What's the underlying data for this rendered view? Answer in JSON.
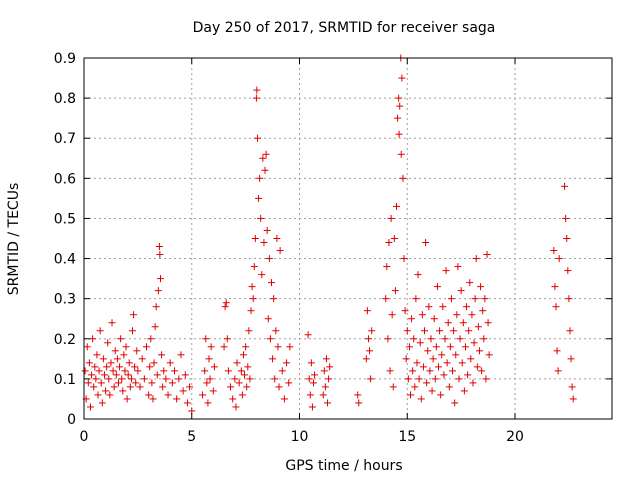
{
  "chart_data": {
    "type": "scatter",
    "title": "Day 250 of 2017, SRMTID for receiver saga",
    "xlabel": "GPS time / hours",
    "ylabel": "SRMTID / TECUs",
    "xlim": [
      0,
      24.5
    ],
    "ylim": [
      0,
      0.9
    ],
    "xticks": [
      0,
      5,
      10,
      15,
      20
    ],
    "yticks": [
      0,
      0.1,
      0.2,
      0.3,
      0.4,
      0.5,
      0.6,
      0.7,
      0.8,
      0.9
    ],
    "xtick_labels": [
      "0",
      "5",
      "10",
      "15",
      "20"
    ],
    "ytick_labels": [
      "0",
      "0.1",
      "0.2",
      "0.3",
      "0.4",
      "0.5",
      "0.6",
      "0.7",
      "0.8",
      "0.9"
    ],
    "grid": true,
    "marker": "+",
    "color": "#e00000",
    "series": [
      {
        "name": "SRMTID",
        "points": [
          [
            0.05,
            0.12
          ],
          [
            0.1,
            0.05
          ],
          [
            0.15,
            0.18
          ],
          [
            0.2,
            0.09
          ],
          [
            0.25,
            0.14
          ],
          [
            0.3,
            0.03
          ],
          [
            0.35,
            0.11
          ],
          [
            0.4,
            0.2
          ],
          [
            0.45,
            0.08
          ],
          [
            0.5,
            0.13
          ],
          [
            0.55,
            0.1
          ],
          [
            0.6,
            0.16
          ],
          [
            0.65,
            0.06
          ],
          [
            0.7,
            0.12
          ],
          [
            0.75,
            0.22
          ],
          [
            0.8,
            0.09
          ],
          [
            0.85,
            0.04
          ],
          [
            0.9,
            0.15
          ],
          [
            0.95,
            0.11
          ],
          [
            1.0,
            0.07
          ],
          [
            1.05,
            0.13
          ],
          [
            1.1,
            0.19
          ],
          [
            1.15,
            0.1
          ],
          [
            1.2,
            0.06
          ],
          [
            1.25,
            0.14
          ],
          [
            1.3,
            0.24
          ],
          [
            1.35,
            0.12
          ],
          [
            1.4,
            0.08
          ],
          [
            1.45,
            0.17
          ],
          [
            1.5,
            0.11
          ],
          [
            1.55,
            0.15
          ],
          [
            1.6,
            0.09
          ],
          [
            1.65,
            0.13
          ],
          [
            1.7,
            0.2
          ],
          [
            1.75,
            0.1
          ],
          [
            1.8,
            0.07
          ],
          [
            1.85,
            0.16
          ],
          [
            1.9,
            0.12
          ],
          [
            1.95,
            0.18
          ],
          [
            2.0,
            0.05
          ],
          [
            2.05,
            0.11
          ],
          [
            2.1,
            0.14
          ],
          [
            2.15,
            0.08
          ],
          [
            2.2,
            0.1
          ],
          [
            2.25,
            0.22
          ],
          [
            2.3,
            0.26
          ],
          [
            2.35,
            0.13
          ],
          [
            2.4,
            0.09
          ],
          [
            2.45,
            0.17
          ],
          [
            2.5,
            0.12
          ],
          [
            2.6,
            0.08
          ],
          [
            2.7,
            0.15
          ],
          [
            2.8,
            0.1
          ],
          [
            2.9,
            0.18
          ],
          [
            3.0,
            0.06
          ],
          [
            3.05,
            0.13
          ],
          [
            3.1,
            0.2
          ],
          [
            3.15,
            0.09
          ],
          [
            3.2,
            0.05
          ],
          [
            3.25,
            0.14
          ],
          [
            3.3,
            0.23
          ],
          [
            3.35,
            0.28
          ],
          [
            3.4,
            0.11
          ],
          [
            3.45,
            0.32
          ],
          [
            3.5,
            0.43
          ],
          [
            3.52,
            0.41
          ],
          [
            3.55,
            0.35
          ],
          [
            3.6,
            0.16
          ],
          [
            3.65,
            0.08
          ],
          [
            3.7,
            0.12
          ],
          [
            3.8,
            0.1
          ],
          [
            3.9,
            0.06
          ],
          [
            4.0,
            0.14
          ],
          [
            4.1,
            0.09
          ],
          [
            4.2,
            0.12
          ],
          [
            4.3,
            0.05
          ],
          [
            4.4,
            0.1
          ],
          [
            4.5,
            0.16
          ],
          [
            4.6,
            0.07
          ],
          [
            4.7,
            0.11
          ],
          [
            4.8,
            0.04
          ],
          [
            4.9,
            0.08
          ],
          [
            5.0,
            0.02
          ],
          [
            5.5,
            0.06
          ],
          [
            5.6,
            0.12
          ],
          [
            5.65,
            0.2
          ],
          [
            5.7,
            0.09
          ],
          [
            5.75,
            0.04
          ],
          [
            5.8,
            0.15
          ],
          [
            5.85,
            0.1
          ],
          [
            5.9,
            0.18
          ],
          [
            6.0,
            0.07
          ],
          [
            6.05,
            0.13
          ],
          [
            6.5,
            0.18
          ],
          [
            6.55,
            0.28
          ],
          [
            6.6,
            0.29
          ],
          [
            6.65,
            0.2
          ],
          [
            6.7,
            0.12
          ],
          [
            6.8,
            0.08
          ],
          [
            6.9,
            0.05
          ],
          [
            7.0,
            0.1
          ],
          [
            7.05,
            0.03
          ],
          [
            7.1,
            0.14
          ],
          [
            7.2,
            0.09
          ],
          [
            7.3,
            0.12
          ],
          [
            7.35,
            0.06
          ],
          [
            7.4,
            0.16
          ],
          [
            7.45,
            0.11
          ],
          [
            7.5,
            0.18
          ],
          [
            7.55,
            0.08
          ],
          [
            7.6,
            0.13
          ],
          [
            7.65,
            0.22
          ],
          [
            7.7,
            0.1
          ],
          [
            7.75,
            0.27
          ],
          [
            7.8,
            0.33
          ],
          [
            7.85,
            0.3
          ],
          [
            7.9,
            0.38
          ],
          [
            7.95,
            0.45
          ],
          [
            8.0,
            0.8
          ],
          [
            8.02,
            0.82
          ],
          [
            8.05,
            0.7
          ],
          [
            8.1,
            0.55
          ],
          [
            8.15,
            0.6
          ],
          [
            8.2,
            0.5
          ],
          [
            8.25,
            0.36
          ],
          [
            8.3,
            0.65
          ],
          [
            8.35,
            0.44
          ],
          [
            8.4,
            0.62
          ],
          [
            8.45,
            0.66
          ],
          [
            8.5,
            0.47
          ],
          [
            8.55,
            0.25
          ],
          [
            8.6,
            0.4
          ],
          [
            8.65,
            0.2
          ],
          [
            8.7,
            0.34
          ],
          [
            8.75,
            0.15
          ],
          [
            8.8,
            0.3
          ],
          [
            8.85,
            0.1
          ],
          [
            8.9,
            0.22
          ],
          [
            8.95,
            0.45
          ],
          [
            9.0,
            0.18
          ],
          [
            9.05,
            0.08
          ],
          [
            9.1,
            0.42
          ],
          [
            9.2,
            0.12
          ],
          [
            9.3,
            0.05
          ],
          [
            9.4,
            0.14
          ],
          [
            9.5,
            0.09
          ],
          [
            9.55,
            0.18
          ],
          [
            10.4,
            0.21
          ],
          [
            10.45,
            0.1
          ],
          [
            10.5,
            0.06
          ],
          [
            10.55,
            0.14
          ],
          [
            10.6,
            0.03
          ],
          [
            10.65,
            0.09
          ],
          [
            10.7,
            0.11
          ],
          [
            11.1,
            0.06
          ],
          [
            11.15,
            0.12
          ],
          [
            11.2,
            0.08
          ],
          [
            11.25,
            0.15
          ],
          [
            11.3,
            0.04
          ],
          [
            11.35,
            0.1
          ],
          [
            11.4,
            0.13
          ],
          [
            12.7,
            0.06
          ],
          [
            12.75,
            0.04
          ],
          [
            13.1,
            0.15
          ],
          [
            13.15,
            0.27
          ],
          [
            13.2,
            0.2
          ],
          [
            13.25,
            0.17
          ],
          [
            13.3,
            0.1
          ],
          [
            13.35,
            0.22
          ],
          [
            14.0,
            0.3
          ],
          [
            14.05,
            0.38
          ],
          [
            14.1,
            0.2
          ],
          [
            14.15,
            0.44
          ],
          [
            14.2,
            0.12
          ],
          [
            14.25,
            0.5
          ],
          [
            14.3,
            0.26
          ],
          [
            14.35,
            0.08
          ],
          [
            14.4,
            0.45
          ],
          [
            14.45,
            0.32
          ],
          [
            14.5,
            0.53
          ],
          [
            14.55,
            0.75
          ],
          [
            14.6,
            0.8
          ],
          [
            14.62,
            0.71
          ],
          [
            14.65,
            0.78
          ],
          [
            14.7,
            0.9
          ],
          [
            14.72,
            0.66
          ],
          [
            14.75,
            0.85
          ],
          [
            14.8,
            0.6
          ],
          [
            14.85,
            0.4
          ],
          [
            14.9,
            0.27
          ],
          [
            14.95,
            0.15
          ],
          [
            15.0,
            0.22
          ],
          [
            15.05,
            0.1
          ],
          [
            15.1,
            0.18
          ],
          [
            15.15,
            0.06
          ],
          [
            15.2,
            0.25
          ],
          [
            15.25,
            0.12
          ],
          [
            15.3,
            0.2
          ],
          [
            15.35,
            0.08
          ],
          [
            15.4,
            0.3
          ],
          [
            15.45,
            0.14
          ],
          [
            15.5,
            0.36
          ],
          [
            15.55,
            0.1
          ],
          [
            15.6,
            0.19
          ],
          [
            15.65,
            0.05
          ],
          [
            15.7,
            0.26
          ],
          [
            15.75,
            0.13
          ],
          [
            15.8,
            0.22
          ],
          [
            15.85,
            0.44
          ],
          [
            15.9,
            0.09
          ],
          [
            15.95,
            0.17
          ],
          [
            16.0,
            0.28
          ],
          [
            16.05,
            0.12
          ],
          [
            16.1,
            0.2
          ],
          [
            16.15,
            0.07
          ],
          [
            16.2,
            0.15
          ],
          [
            16.25,
            0.25
          ],
          [
            16.3,
            0.1
          ],
          [
            16.35,
            0.18
          ],
          [
            16.4,
            0.33
          ],
          [
            16.45,
            0.13
          ],
          [
            16.5,
            0.22
          ],
          [
            16.55,
            0.06
          ],
          [
            16.6,
            0.16
          ],
          [
            16.65,
            0.28
          ],
          [
            16.7,
            0.11
          ],
          [
            16.75,
            0.2
          ],
          [
            16.8,
            0.37
          ],
          [
            16.85,
            0.14
          ],
          [
            16.9,
            0.24
          ],
          [
            16.95,
            0.08
          ],
          [
            17.0,
            0.18
          ],
          [
            17.05,
            0.3
          ],
          [
            17.1,
            0.12
          ],
          [
            17.15,
            0.22
          ],
          [
            17.2,
            0.04
          ],
          [
            17.25,
            0.16
          ],
          [
            17.3,
            0.26
          ],
          [
            17.35,
            0.38
          ],
          [
            17.4,
            0.1
          ],
          [
            17.45,
            0.2
          ],
          [
            17.5,
            0.32
          ],
          [
            17.55,
            0.14
          ],
          [
            17.6,
            0.24
          ],
          [
            17.65,
            0.07
          ],
          [
            17.7,
            0.18
          ],
          [
            17.75,
            0.28
          ],
          [
            17.8,
            0.11
          ],
          [
            17.85,
            0.22
          ],
          [
            17.9,
            0.34
          ],
          [
            17.95,
            0.15
          ],
          [
            18.0,
            0.26
          ],
          [
            18.05,
            0.09
          ],
          [
            18.1,
            0.19
          ],
          [
            18.15,
            0.3
          ],
          [
            18.2,
            0.4
          ],
          [
            18.25,
            0.13
          ],
          [
            18.3,
            0.23
          ],
          [
            18.35,
            0.17
          ],
          [
            18.4,
            0.33
          ],
          [
            18.45,
            0.12
          ],
          [
            18.5,
            0.27
          ],
          [
            18.55,
            0.2
          ],
          [
            18.6,
            0.3
          ],
          [
            18.65,
            0.1
          ],
          [
            18.7,
            0.41
          ],
          [
            18.75,
            0.24
          ],
          [
            18.8,
            0.16
          ],
          [
            21.8,
            0.42
          ],
          [
            21.85,
            0.33
          ],
          [
            21.9,
            0.28
          ],
          [
            21.95,
            0.17
          ],
          [
            22.0,
            0.12
          ],
          [
            22.05,
            0.4
          ],
          [
            22.3,
            0.58
          ],
          [
            22.35,
            0.5
          ],
          [
            22.4,
            0.45
          ],
          [
            22.45,
            0.37
          ],
          [
            22.5,
            0.3
          ],
          [
            22.55,
            0.22
          ],
          [
            22.6,
            0.15
          ],
          [
            22.65,
            0.08
          ],
          [
            22.7,
            0.05
          ]
        ]
      }
    ]
  }
}
